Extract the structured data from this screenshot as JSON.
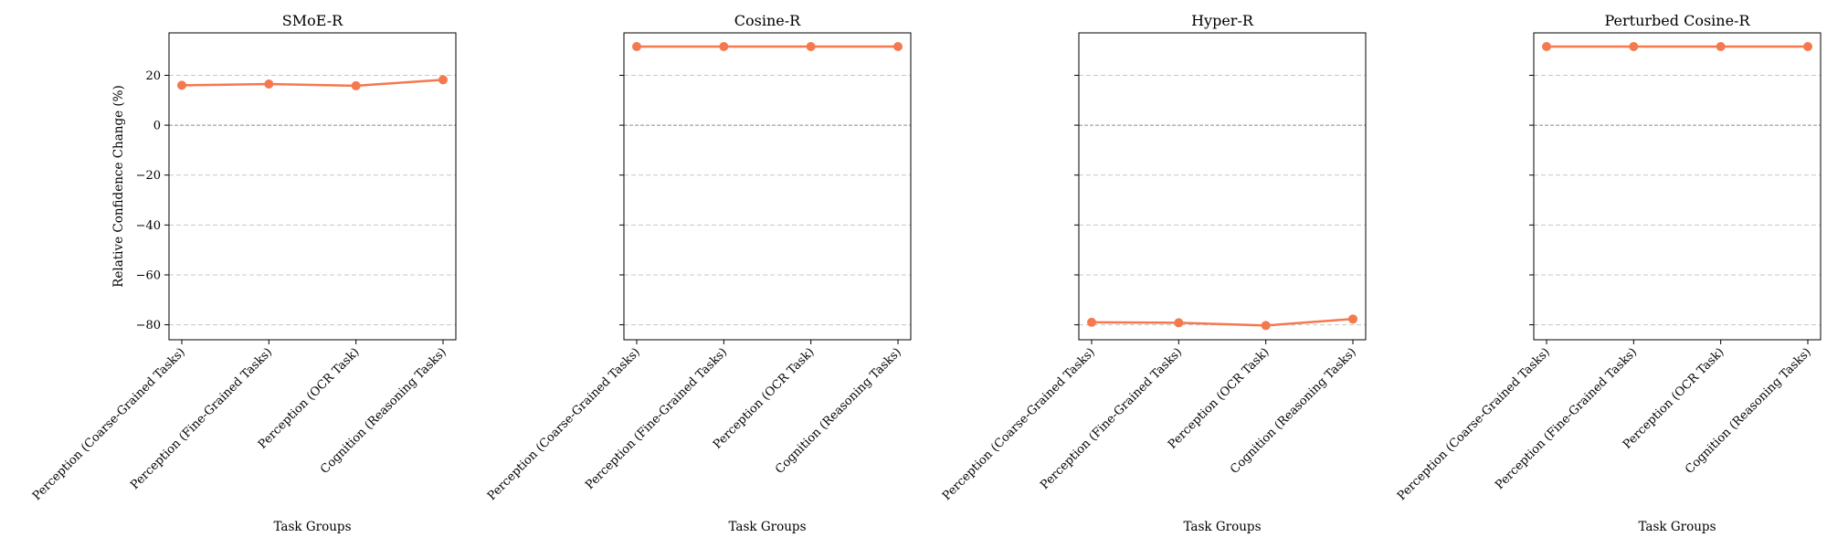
{
  "chart_data": [
    {
      "type": "line",
      "title": "SMoE-R",
      "xlabel": "Task Groups",
      "ylabel": "Relative Confidence Change (%)",
      "categories": [
        "Perception (Coarse-Grained Tasks)",
        "Perception (Fine-Grained Tasks)",
        "Perception (OCR Task)",
        "Cognition (Reasoning Tasks)"
      ],
      "series": [
        {
          "values": [
            16,
            16.5,
            15.8,
            18.2
          ]
        }
      ],
      "ylim": [
        -86,
        37
      ],
      "yticks": [
        -80,
        -60,
        -40,
        -20,
        0,
        20
      ],
      "grid": "y",
      "reference_line": 0
    },
    {
      "type": "line",
      "title": "Cosine-R",
      "xlabel": "Task Groups",
      "ylabel": "",
      "categories": [
        "Perception (Coarse-Grained Tasks)",
        "Perception (Fine-Grained Tasks)",
        "Perception (OCR Task)",
        "Cognition (Reasoning Tasks)"
      ],
      "series": [
        {
          "values": [
            31.5,
            31.5,
            31.5,
            31.5
          ]
        }
      ],
      "ylim": [
        -86,
        37
      ],
      "yticks": [
        -80,
        -60,
        -40,
        -20,
        0,
        20
      ],
      "grid": "y",
      "reference_line": 0
    },
    {
      "type": "line",
      "title": "Hyper-R",
      "xlabel": "Task Groups",
      "ylabel": "",
      "categories": [
        "Perception (Coarse-Grained Tasks)",
        "Perception (Fine-Grained Tasks)",
        "Perception (OCR Task)",
        "Cognition (Reasoning Tasks)"
      ],
      "series": [
        {
          "values": [
            -79,
            -79.2,
            -80.3,
            -77.7
          ]
        }
      ],
      "ylim": [
        -86,
        37
      ],
      "yticks": [
        -80,
        -60,
        -40,
        -20,
        0,
        20
      ],
      "grid": "y",
      "reference_line": 0
    },
    {
      "type": "line",
      "title": "Perturbed Cosine-R",
      "xlabel": "Task Groups",
      "ylabel": "",
      "categories": [
        "Perception (Coarse-Grained Tasks)",
        "Perception (Fine-Grained Tasks)",
        "Perception (OCR Task)",
        "Cognition (Reasoning Tasks)"
      ],
      "series": [
        {
          "values": [
            31.5,
            31.5,
            31.5,
            31.5
          ]
        }
      ],
      "ylim": [
        -86,
        37
      ],
      "yticks": [
        -80,
        -60,
        -40,
        -20,
        0,
        20
      ],
      "grid": "y",
      "reference_line": 0
    }
  ],
  "style": {
    "line_color": "#f4794f",
    "marker_color": "#f4794f"
  }
}
